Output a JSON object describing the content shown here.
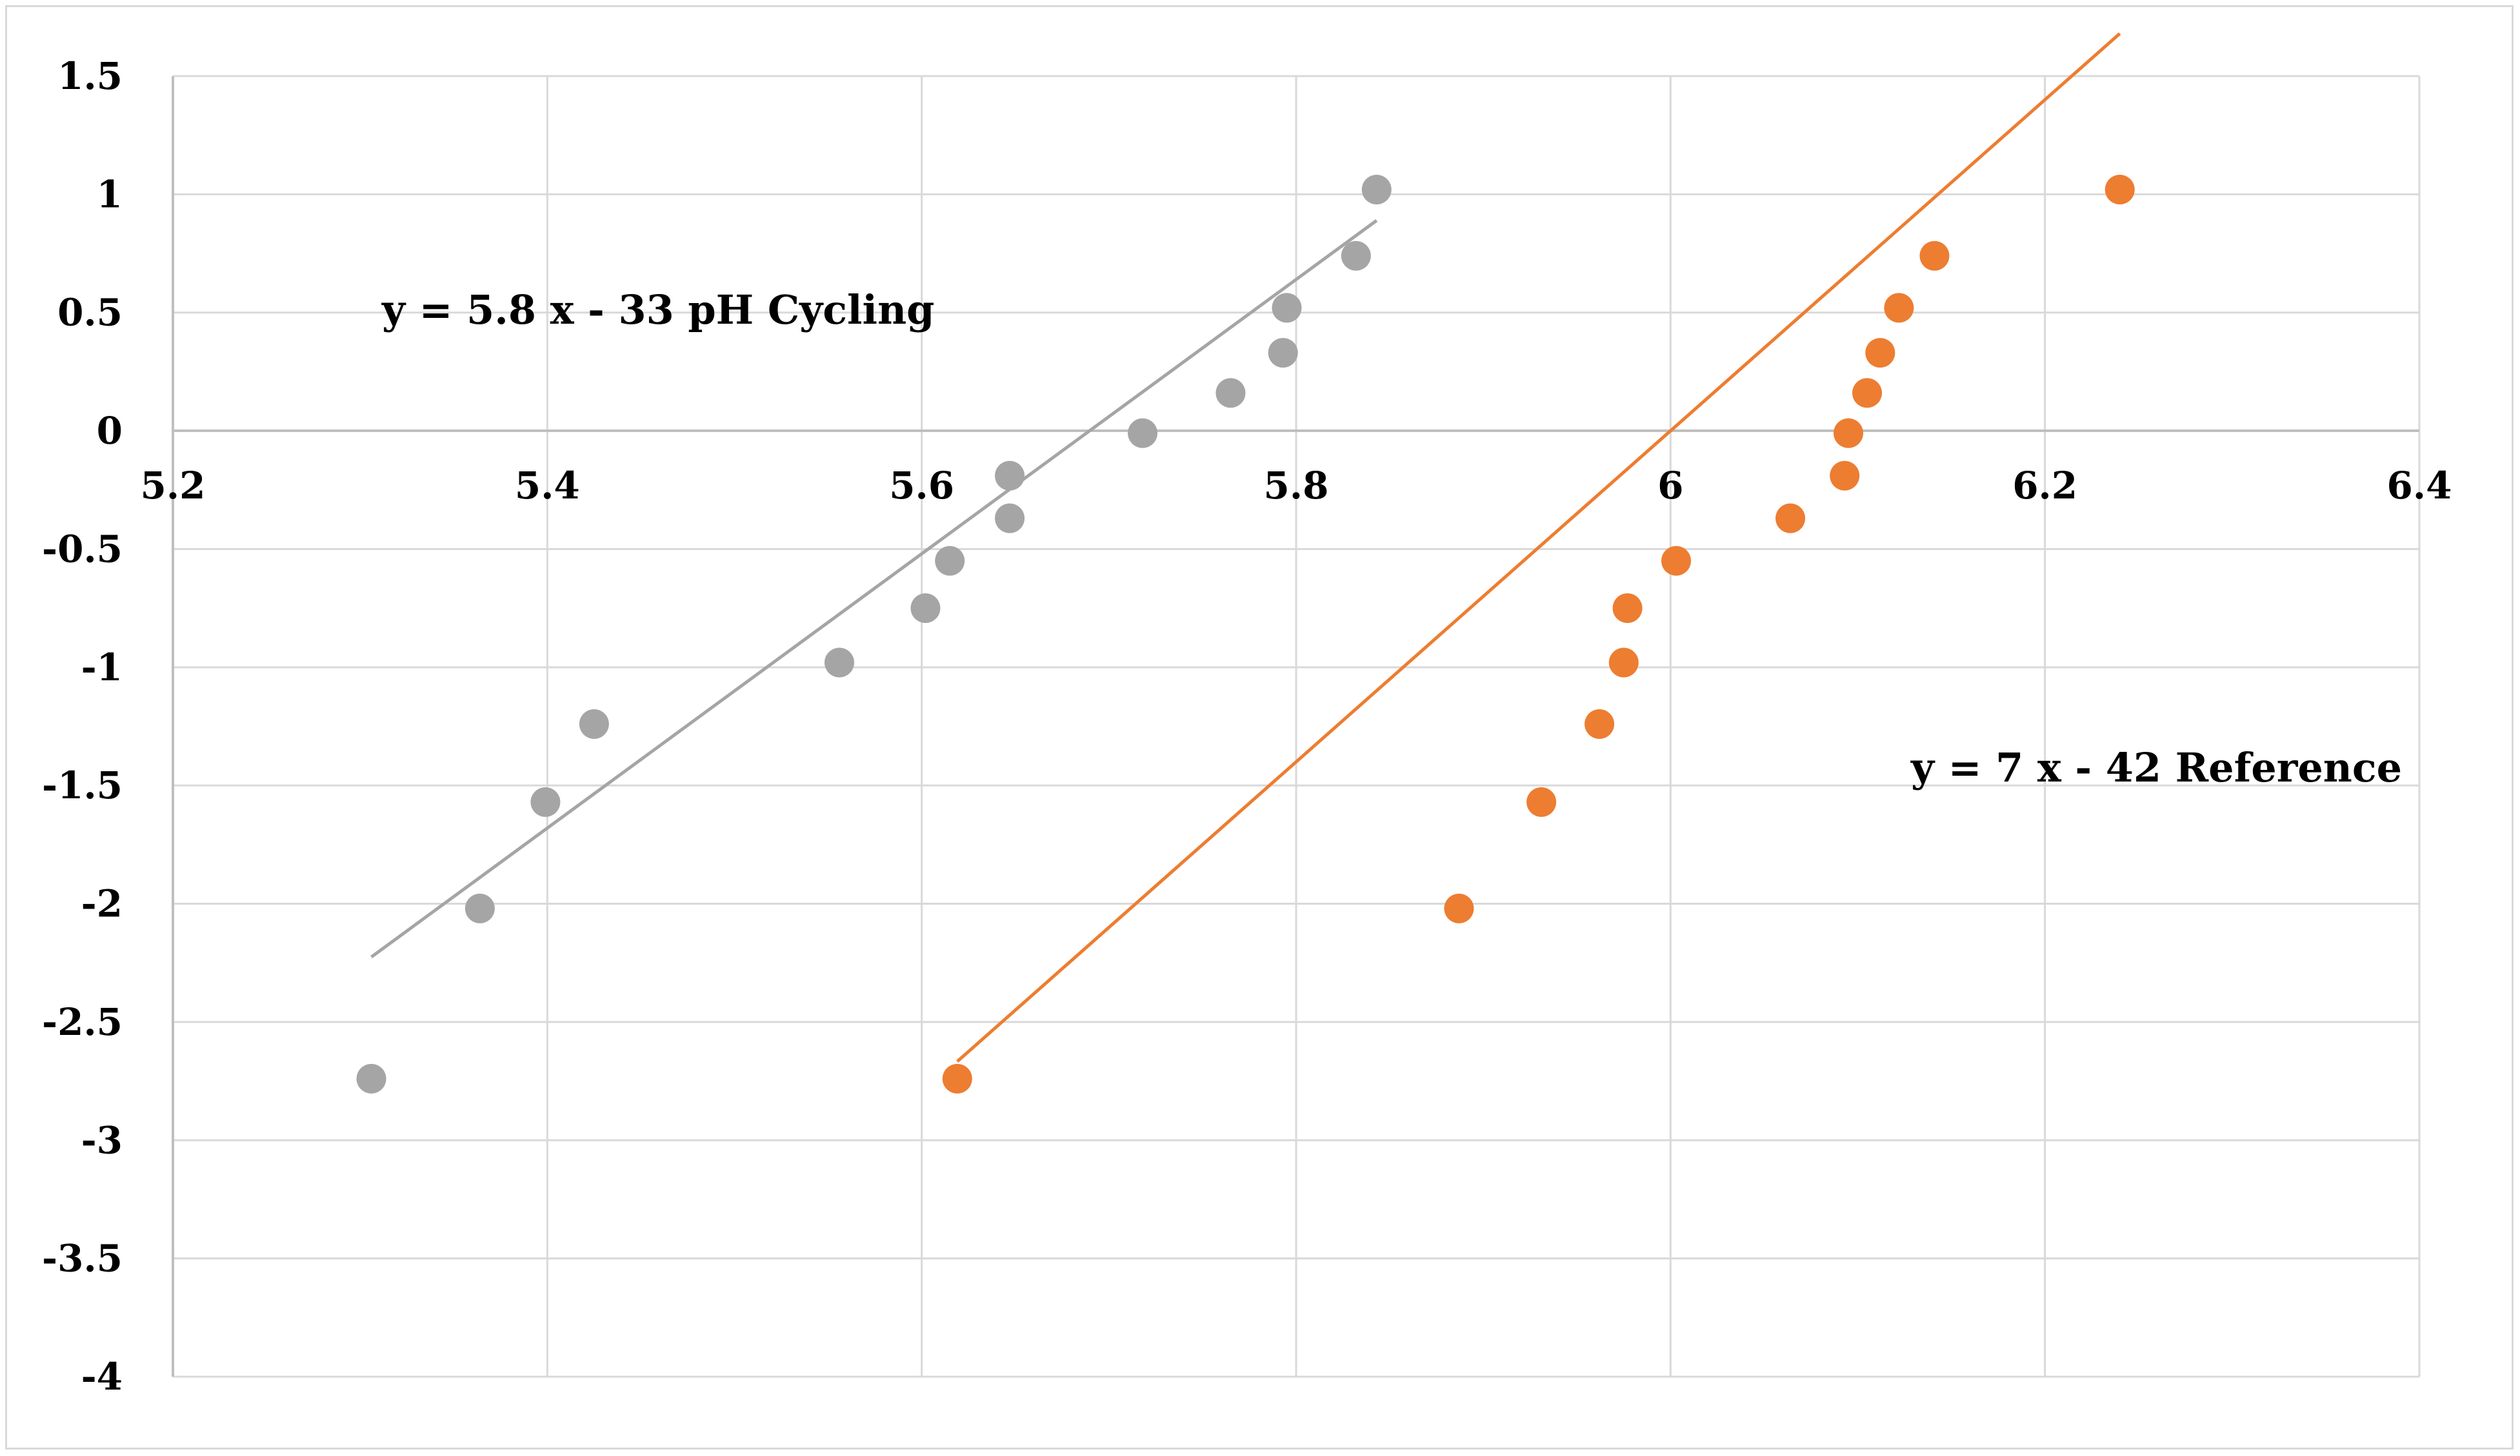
{
  "chart_data": {
    "type": "scatter",
    "title": "",
    "xlabel": "",
    "ylabel": "",
    "xlim": [
      5.2,
      6.4
    ],
    "ylim": [
      -4,
      1.5
    ],
    "x_ticks": [
      "5.2",
      "5.4",
      "5.6",
      "5.8",
      "6",
      "6.2",
      "6.4"
    ],
    "y_ticks": [
      "1.5",
      "1",
      "0.5",
      "0",
      "-0.5",
      "-1",
      "-1.5",
      "-2",
      "-2.5",
      "-3",
      "-3.5",
      "-4"
    ],
    "x_tick_values": [
      5.2,
      5.4,
      5.6,
      5.8,
      6.0,
      6.2,
      6.4
    ],
    "y_tick_values": [
      1.5,
      1,
      0.5,
      0,
      -0.5,
      -1,
      -1.5,
      -2,
      -2.5,
      -3,
      -3.5,
      -4
    ],
    "grid": true,
    "series": [
      {
        "color": "#a5a5a5",
        "points": [
          [
            5.306,
            -2.74
          ],
          [
            5.364,
            -2.02
          ],
          [
            5.399,
            -1.57
          ],
          [
            5.425,
            -1.24
          ],
          [
            5.556,
            -0.98
          ],
          [
            5.602,
            -0.75
          ],
          [
            5.615,
            -0.55
          ],
          [
            5.647,
            -0.37
          ],
          [
            5.647,
            -0.19
          ],
          [
            5.718,
            -0.01
          ],
          [
            5.765,
            0.16
          ],
          [
            5.793,
            0.33
          ],
          [
            5.795,
            0.52
          ],
          [
            5.832,
            0.74
          ],
          [
            5.843,
            1.02
          ]
        ],
        "trendline": {
          "slope": 5.8,
          "intercept": -33,
          "x_range": [
            5.306,
            5.843
          ]
        },
        "equation": "y = 5.8 x - 33   pH Cycling"
      },
      {
        "color": "#ed7d31",
        "points": [
          [
            5.619,
            -2.74
          ],
          [
            5.887,
            -2.02
          ],
          [
            5.931,
            -1.57
          ],
          [
            5.962,
            -1.24
          ],
          [
            5.975,
            -0.98
          ],
          [
            5.977,
            -0.75
          ],
          [
            6.003,
            -0.55
          ],
          [
            6.064,
            -0.37
          ],
          [
            6.093,
            -0.19
          ],
          [
            6.095,
            -0.01
          ],
          [
            6.105,
            0.16
          ],
          [
            6.112,
            0.33
          ],
          [
            6.122,
            0.52
          ],
          [
            6.141,
            0.74
          ],
          [
            6.24,
            1.02
          ]
        ],
        "trendline": {
          "slope": 7,
          "intercept": -42,
          "x_range": [
            5.619,
            6.24
          ]
        },
        "equation": "y = 7 x - 42  Reference"
      }
    ]
  }
}
